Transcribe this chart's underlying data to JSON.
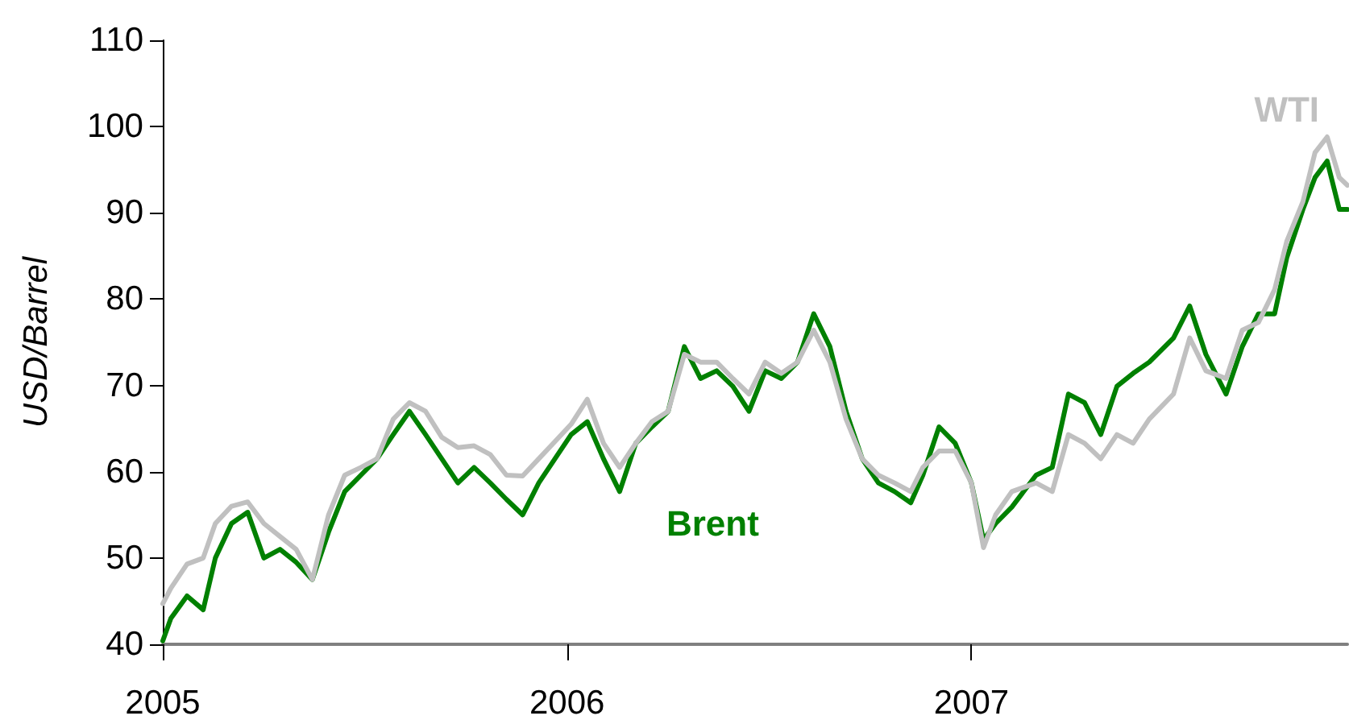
{
  "chart_data": {
    "type": "line",
    "ylabel": "USD/Barrel",
    "x": [
      2005,
      2005.02,
      2005.06,
      2005.1,
      2005.13,
      2005.17,
      2005.21,
      2005.25,
      2005.29,
      2005.33,
      2005.37,
      2005.41,
      2005.45,
      2005.49,
      2005.53,
      2005.57,
      2005.61,
      2005.65,
      2005.69,
      2005.73,
      2005.77,
      2005.81,
      2005.85,
      2005.89,
      2005.93,
      2005.97,
      2006.01,
      2006.05,
      2006.09,
      2006.13,
      2006.17,
      2006.21,
      2006.25,
      2006.29,
      2006.33,
      2006.37,
      2006.41,
      2006.45,
      2006.49,
      2006.53,
      2006.57,
      2006.61,
      2006.65,
      2006.69,
      2006.73,
      2006.77,
      2006.81,
      2006.85,
      2006.88,
      2006.92,
      2006.96,
      2007,
      2007.03,
      2007.06,
      2007.1,
      2007.16,
      2007.2,
      2007.24,
      2007.28,
      2007.32,
      2007.36,
      2007.4,
      2007.44,
      2007.5,
      2007.54,
      2007.58,
      2007.63,
      2007.67,
      2007.71,
      2007.75,
      2007.78,
      2007.82,
      2007.85,
      2007.88,
      2007.91,
      2007.93
    ],
    "xlim": [
      2005,
      2007.93
    ],
    "xticks": [
      2005,
      2006,
      2007
    ],
    "ylim": [
      40,
      110
    ],
    "yticks": [
      40,
      50,
      60,
      70,
      80,
      90,
      100,
      110
    ],
    "series": [
      {
        "name": "Brent",
        "color": "#008000",
        "values": [
          40.4,
          43,
          45.6,
          44,
          50,
          54,
          55.3,
          50,
          51,
          49.5,
          47.5,
          53,
          57.7,
          59.6,
          61.5,
          64.3,
          67,
          64.3,
          61.5,
          58.7,
          60.5,
          58.7,
          56.8,
          55,
          58.7,
          61.5,
          64.3,
          65.8,
          61.5,
          57.7,
          63.3,
          65.2,
          67,
          74.5,
          70.8,
          71.7,
          69.9,
          67,
          71.7,
          70.8,
          72.7,
          78.3,
          74.5,
          67,
          61.5,
          58.7,
          57.7,
          56.4,
          59.6,
          65.2,
          63.3,
          58.7,
          52.1,
          54,
          55.9,
          59.6,
          60.5,
          69,
          68,
          64.3,
          69.9,
          71.4,
          72.7,
          75.5,
          79.2,
          73.6,
          69,
          74.5,
          78.3,
          78.3,
          84.8,
          90.4,
          94.1,
          96,
          90.4,
          90.4
        ]
      },
      {
        "name": "WTI",
        "color": "#c0c0c0",
        "values": [
          44.7,
          46.5,
          49.3,
          50,
          54,
          56,
          56.5,
          54,
          52.5,
          51,
          47.5,
          55,
          59.6,
          60.5,
          61.5,
          66.1,
          68,
          67,
          64,
          62.8,
          63,
          62,
          59.6,
          59.5,
          61.5,
          63.5,
          65.5,
          68.4,
          63.3,
          60.5,
          63.3,
          65.8,
          67,
          73.6,
          72.7,
          72.7,
          70.8,
          69,
          72.7,
          71.4,
          72.7,
          76.4,
          72.7,
          66.1,
          61.5,
          59.6,
          58.7,
          57.7,
          60.5,
          62.4,
          62.4,
          58.7,
          51.2,
          55,
          57.7,
          58.7,
          57.7,
          64.3,
          63.3,
          61.5,
          64.3,
          63.3,
          66.1,
          69,
          75.5,
          71.7,
          70.8,
          76.4,
          77.3,
          81.1,
          86.7,
          91.3,
          97,
          98.8,
          94.1,
          93.2
        ]
      }
    ],
    "legend": false,
    "grid": false,
    "marker": "none",
    "line_style": "solid"
  }
}
